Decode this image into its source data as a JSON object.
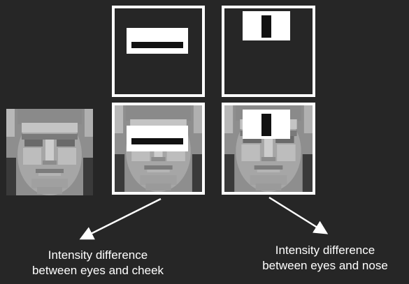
{
  "captions": {
    "left": [
      "Intensity difference",
      "between eyes and cheek"
    ],
    "right": [
      "Intensity difference",
      "between eyes and nose"
    ]
  },
  "colors": {
    "background": "#262626",
    "frame": "#ffffff",
    "feature_white": "#ffffff",
    "feature_black": "#111111"
  },
  "features": {
    "two_rectangle": "horizontal-edge-feature (white band above dark band)",
    "three_rectangle": "line-feature (white | dark | white)"
  }
}
